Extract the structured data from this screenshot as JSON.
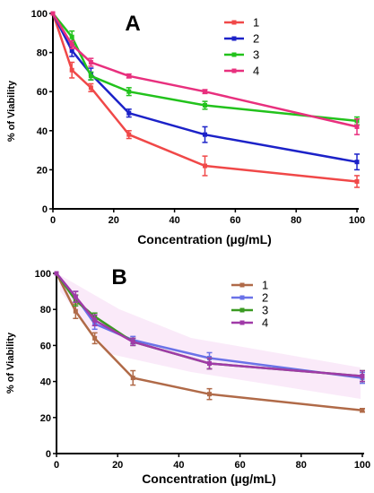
{
  "chart_data": [
    {
      "type": "line",
      "panel": "A",
      "x": [
        0,
        6.25,
        12.5,
        25,
        50,
        100
      ],
      "xlabel": "Concentration (µg/mL)",
      "ylabel": "% of Viability",
      "xlim": [
        0,
        100
      ],
      "ylim": [
        0,
        100
      ],
      "xticks": [
        "0",
        "20",
        "40",
        "60",
        "80",
        "100"
      ],
      "yticks": [
        "0",
        "20",
        "40",
        "60",
        "80",
        "100"
      ],
      "grid": false,
      "legend_position": "top-right",
      "series": [
        {
          "name": "1",
          "color": "#f04848",
          "values": [
            100,
            71,
            62,
            38,
            22,
            14
          ],
          "errors": [
            0,
            4,
            2,
            2,
            5,
            3
          ]
        },
        {
          "name": "2",
          "color": "#1c22c8",
          "values": [
            100,
            81,
            69,
            49,
            38,
            24
          ],
          "errors": [
            0,
            3,
            3,
            2,
            4,
            4
          ]
        },
        {
          "name": "3",
          "color": "#22c21c",
          "values": [
            100,
            88,
            68,
            60,
            53,
            45
          ],
          "errors": [
            0,
            3,
            2,
            2,
            2,
            2
          ]
        },
        {
          "name": "4",
          "color": "#e8307e",
          "values": [
            100,
            84,
            75,
            68,
            60,
            42
          ],
          "errors": [
            0,
            2,
            2,
            1,
            1,
            4
          ]
        }
      ]
    },
    {
      "type": "line",
      "panel": "B",
      "x": [
        0,
        6.25,
        12.5,
        25,
        50,
        100
      ],
      "xlabel": "Concentration (µg/mL)",
      "ylabel": "% of Viability",
      "xlim": [
        0,
        100
      ],
      "ylim": [
        0,
        100
      ],
      "xticks": [
        "0",
        "20",
        "40",
        "60",
        "80",
        "100"
      ],
      "yticks": [
        "0",
        "20",
        "40",
        "60",
        "80",
        "100"
      ],
      "grid": false,
      "legend_position": "top-right",
      "series": [
        {
          "name": "1",
          "color": "#b06a48",
          "values": [
            100,
            79,
            64,
            42,
            33,
            24
          ],
          "errors": [
            0,
            4,
            3,
            4,
            3,
            1
          ]
        },
        {
          "name": "2",
          "color": "#6a72e8",
          "values": [
            100,
            87,
            72,
            63,
            53,
            42
          ],
          "errors": [
            0,
            3,
            3,
            2,
            3,
            3
          ]
        },
        {
          "name": "3",
          "color": "#3a9a22",
          "values": [
            100,
            85,
            76,
            62,
            50,
            43
          ],
          "errors": [
            0,
            3,
            2,
            2,
            3,
            3
          ]
        },
        {
          "name": "4",
          "color": "#a03aa8",
          "values": [
            100,
            87,
            74,
            62,
            50,
            43
          ],
          "errors": [
            0,
            3,
            3,
            2,
            3,
            3
          ]
        }
      ]
    }
  ]
}
